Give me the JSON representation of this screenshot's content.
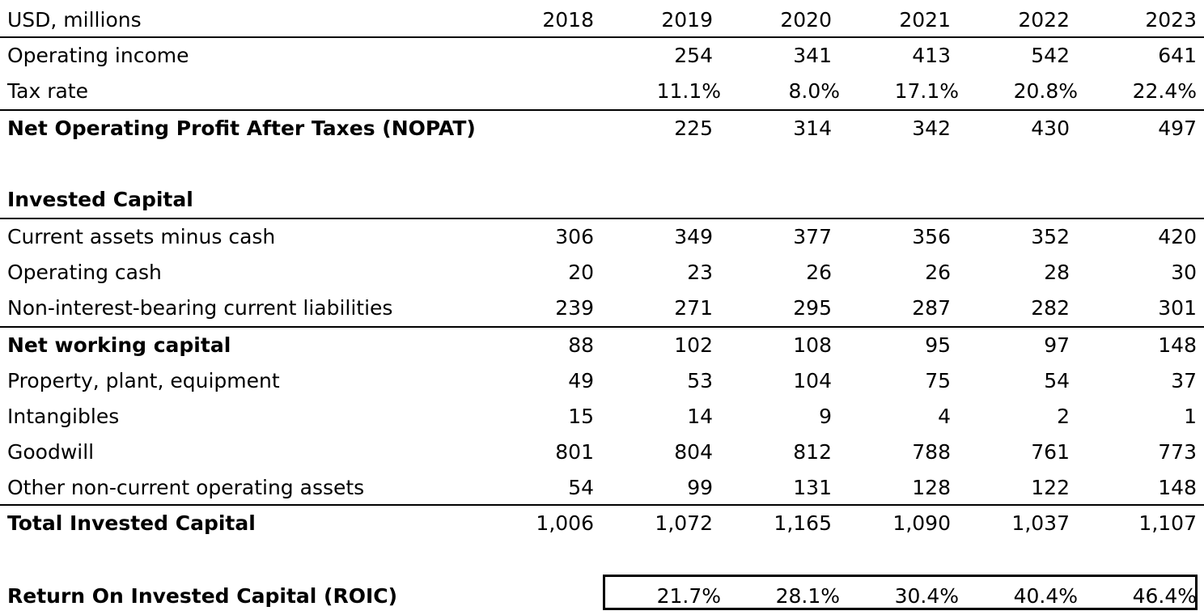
{
  "header": {
    "units": "USD, millions",
    "years": [
      "2018",
      "2019",
      "2020",
      "2021",
      "2022",
      "2023"
    ]
  },
  "rows": {
    "operating_income": {
      "label": "Operating income",
      "values": [
        "",
        "254",
        "341",
        "413",
        "542",
        "641"
      ]
    },
    "tax_rate": {
      "label": "Tax rate",
      "values": [
        "",
        "11.1%",
        "8.0%",
        "17.1%",
        "20.8%",
        "22.4%"
      ]
    },
    "nopat": {
      "label": "Net Operating Profit After Taxes (NOPAT)",
      "values": [
        "",
        "225",
        "314",
        "342",
        "430",
        "497"
      ]
    },
    "invested_capital_heading": {
      "label": "Invested Capital"
    },
    "current_assets": {
      "label": "Current assets minus cash",
      "values": [
        "306",
        "349",
        "377",
        "356",
        "352",
        "420"
      ]
    },
    "operating_cash": {
      "label": "Operating cash",
      "values": [
        "20",
        "23",
        "26",
        "26",
        "28",
        "30"
      ]
    },
    "nibcl": {
      "label": "Non-interest-bearing current liabilities",
      "values": [
        "239",
        "271",
        "295",
        "287",
        "282",
        "301"
      ]
    },
    "net_working_capital": {
      "label": "Net working capital",
      "values": [
        "88",
        "102",
        "108",
        "95",
        "97",
        "148"
      ]
    },
    "ppe": {
      "label": "Property, plant, equipment",
      "values": [
        "49",
        "53",
        "104",
        "75",
        "54",
        "37"
      ]
    },
    "intangibles": {
      "label": "Intangibles",
      "values": [
        "15",
        "14",
        "9",
        "4",
        "2",
        "1"
      ]
    },
    "goodwill": {
      "label": "Goodwill",
      "values": [
        "801",
        "804",
        "812",
        "788",
        "761",
        "773"
      ]
    },
    "other_assets": {
      "label": "Other non-current operating assets",
      "values": [
        "54",
        "99",
        "131",
        "128",
        "122",
        "148"
      ]
    },
    "total_invested_capital": {
      "label": "Total Invested Capital",
      "values": [
        "1,006",
        "1,072",
        "1,165",
        "1,090",
        "1,037",
        "1,107"
      ]
    },
    "roic": {
      "label": "Return On Invested Capital (ROIC)",
      "values": [
        "",
        "21.7%",
        "28.1%",
        "30.4%",
        "40.4%",
        "46.4%"
      ]
    }
  }
}
